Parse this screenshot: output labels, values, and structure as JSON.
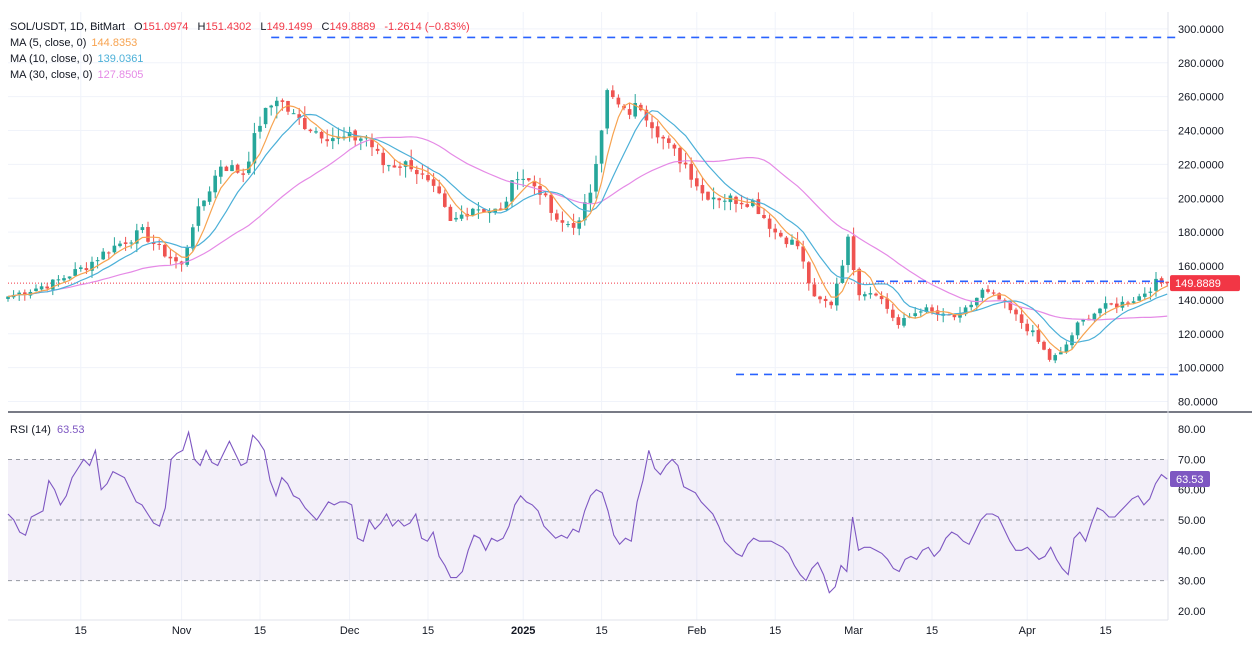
{
  "chart_data": {
    "type": "candlestick_with_rsi",
    "title": "SOL/USDT, 1D, BitMart",
    "ohlc": {
      "o_label": "O",
      "o": "151.0974",
      "h_label": "H",
      "h": "151.4302",
      "l_label": "L",
      "l": "149.1499",
      "c_label": "C",
      "c": "149.8889",
      "change": "-1.2614 (−0.83%)"
    },
    "ma_legend": [
      {
        "label": "MA (5, close, 0)",
        "value": "144.8353",
        "color": "#f7a350"
      },
      {
        "label": "MA (10, close, 0)",
        "value": "139.0361",
        "color": "#4cb0d8"
      },
      {
        "label": "MA (30, close, 0)",
        "value": "127.8505",
        "color": "#e58ae6"
      }
    ],
    "price_axis": {
      "range": [
        75,
        310
      ],
      "ticks": [
        "300.0000",
        "280.0000",
        "260.0000",
        "240.0000",
        "220.0000",
        "200.0000",
        "180.0000",
        "160.0000",
        "140.0000",
        "120.0000",
        "100.0000",
        "80.0000"
      ]
    },
    "price_tag": {
      "value": "149.8889",
      "color": "#f23645"
    },
    "rsi": {
      "label": "RSI (14)",
      "value": "63.53",
      "color": "#7e57c2",
      "range": [
        17,
        85
      ],
      "ticks": [
        "80.00",
        "70.00",
        "60.00",
        "50.00",
        "40.00",
        "30.00",
        "20.00"
      ],
      "band": [
        30,
        70
      ],
      "series": [
        52,
        50,
        46,
        45,
        51,
        52,
        53,
        63,
        60,
        55,
        58,
        64,
        67,
        70,
        68,
        73,
        60,
        62,
        66,
        65,
        64,
        60,
        56,
        55,
        52,
        49,
        48,
        54,
        70,
        72,
        73,
        79,
        70,
        68,
        73,
        69,
        68,
        72,
        76,
        72,
        68,
        69,
        78,
        76,
        73,
        63,
        58,
        64,
        62,
        58,
        57,
        54,
        52,
        50,
        53,
        56,
        55,
        56,
        56,
        55,
        44,
        43,
        50,
        47,
        49,
        52,
        48,
        50,
        48,
        49,
        52,
        44,
        43,
        46,
        38,
        35,
        31,
        31,
        33,
        40,
        45,
        44,
        40,
        44,
        43,
        44,
        48,
        55,
        58,
        56,
        55,
        53,
        48,
        46,
        44,
        45,
        44,
        47,
        46,
        53,
        58,
        60,
        59,
        53,
        45,
        42,
        44,
        43,
        56,
        63,
        73,
        67,
        65,
        68,
        70,
        68,
        61,
        60,
        59,
        56,
        54,
        52,
        48,
        43,
        41,
        39,
        38,
        42,
        44,
        43,
        43,
        43,
        42,
        41,
        39,
        35,
        32,
        30,
        34,
        36,
        32,
        26,
        28,
        35,
        33,
        51,
        40,
        41,
        41,
        40,
        39,
        37,
        34,
        33,
        37,
        38,
        37,
        40,
        41,
        38,
        40,
        44,
        46,
        45,
        43,
        42,
        46,
        50,
        52,
        52,
        51,
        47,
        43,
        40,
        40,
        41,
        39,
        37,
        38,
        41,
        37,
        34,
        32,
        44,
        46,
        43,
        49,
        54,
        53,
        51,
        51,
        53,
        55,
        57,
        58,
        55,
        57,
        62,
        65,
        63.53
      ]
    },
    "x_axis": {
      "labels": [
        "15",
        "Nov",
        "15",
        "Dec",
        "15",
        "2025",
        "15",
        "Feb",
        "15",
        "Mar",
        "15",
        "Apr",
        "15"
      ],
      "label_days": [
        13,
        31,
        45,
        61,
        75,
        92,
        106,
        123,
        137,
        151,
        165,
        182,
        196
      ]
    },
    "levels": [
      {
        "price": 295,
        "start_day": 47,
        "end_day": 209
      },
      {
        "price": 151,
        "start_day": 155,
        "end_day": 209
      },
      {
        "price": 96,
        "start_day": 130,
        "end_day": 209
      }
    ],
    "series_close": [
      {
        "day": 0,
        "close": 142
      },
      {
        "day": 8,
        "close": 150
      },
      {
        "day": 14,
        "close": 160
      },
      {
        "day": 18,
        "close": 170
      },
      {
        "day": 24,
        "close": 180
      },
      {
        "day": 27,
        "close": 170
      },
      {
        "day": 31,
        "close": 160
      },
      {
        "day": 33,
        "close": 185
      },
      {
        "day": 38,
        "close": 220
      },
      {
        "day": 42,
        "close": 215
      },
      {
        "day": 45,
        "close": 245
      },
      {
        "day": 48,
        "close": 260
      },
      {
        "day": 51,
        "close": 248
      },
      {
        "day": 55,
        "close": 240
      },
      {
        "day": 59,
        "close": 235
      },
      {
        "day": 64,
        "close": 236
      },
      {
        "day": 67,
        "close": 220
      },
      {
        "day": 72,
        "close": 220
      },
      {
        "day": 77,
        "close": 200
      },
      {
        "day": 79,
        "close": 185
      },
      {
        "day": 83,
        "close": 195
      },
      {
        "day": 88,
        "close": 192
      },
      {
        "day": 91,
        "close": 215
      },
      {
        "day": 95,
        "close": 205
      },
      {
        "day": 98,
        "close": 185
      },
      {
        "day": 102,
        "close": 185
      },
      {
        "day": 104,
        "close": 205
      },
      {
        "day": 107,
        "close": 262
      },
      {
        "day": 110,
        "close": 250
      },
      {
        "day": 113,
        "close": 255
      },
      {
        "day": 118,
        "close": 230
      },
      {
        "day": 121,
        "close": 220
      },
      {
        "day": 124,
        "close": 203
      },
      {
        "day": 128,
        "close": 200
      },
      {
        "day": 133,
        "close": 198
      },
      {
        "day": 137,
        "close": 180
      },
      {
        "day": 141,
        "close": 172
      },
      {
        "day": 144,
        "close": 140
      },
      {
        "day": 147,
        "close": 138
      },
      {
        "day": 150,
        "close": 175
      },
      {
        "day": 152,
        "close": 145
      },
      {
        "day": 155,
        "close": 145
      },
      {
        "day": 159,
        "close": 125
      },
      {
        "day": 163,
        "close": 135
      },
      {
        "day": 167,
        "close": 130
      },
      {
        "day": 170,
        "close": 130
      },
      {
        "day": 174,
        "close": 145
      },
      {
        "day": 177,
        "close": 140
      },
      {
        "day": 180,
        "close": 130
      },
      {
        "day": 183,
        "close": 120
      },
      {
        "day": 186,
        "close": 105
      },
      {
        "day": 188,
        "close": 108
      },
      {
        "day": 191,
        "close": 125
      },
      {
        "day": 195,
        "close": 135
      },
      {
        "day": 199,
        "close": 138
      },
      {
        "day": 202,
        "close": 142
      },
      {
        "day": 205,
        "close": 150
      },
      {
        "day": 207,
        "close": 149.89
      }
    ]
  }
}
